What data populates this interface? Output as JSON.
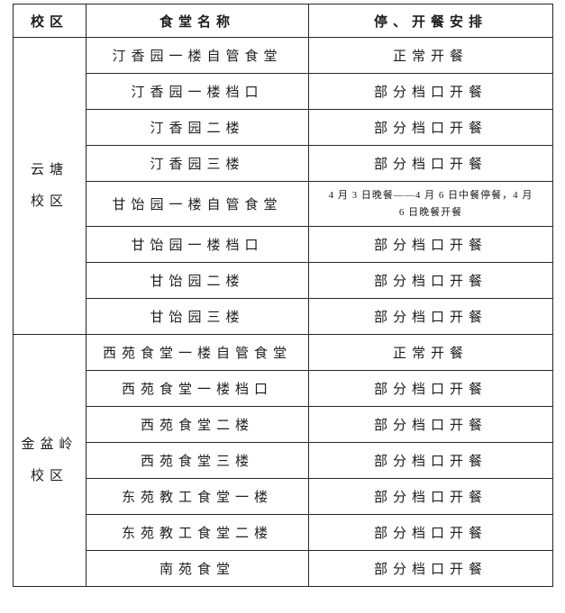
{
  "colors": {
    "background": "#ffffff",
    "border": "#262626",
    "text": "#1d1d1d"
  },
  "table": {
    "headers": {
      "campus": "校区",
      "canteen": "食堂名称",
      "schedule": "停、开餐安排"
    },
    "groups": [
      {
        "campus": "云塘校区",
        "campus_lines": [
          "云塘",
          "校区"
        ],
        "rows": [
          {
            "canteen": "汀香园一楼自管食堂",
            "schedule": "正常开餐"
          },
          {
            "canteen": "汀香园一楼档口",
            "schedule": "部分档口开餐"
          },
          {
            "canteen": "汀香园二楼",
            "schedule": "部分档口开餐"
          },
          {
            "canteen": "汀香园三楼",
            "schedule": "部分档口开餐"
          },
          {
            "canteen": "甘饴园一楼自管食堂",
            "schedule": "4 月 3 日晚餐——4 月 6 日中餐停餐，4 月 6 日晚餐开餐",
            "schedule_lines": [
              "4 月 3 日晚餐——4 月 6 日中餐停餐，4 月",
              "6 日晚餐开餐"
            ]
          },
          {
            "canteen": "甘饴园一楼档口",
            "schedule": "部分档口开餐"
          },
          {
            "canteen": "甘饴园二楼",
            "schedule": "部分档口开餐"
          },
          {
            "canteen": "甘饴园三楼",
            "schedule": "部分档口开餐"
          }
        ]
      },
      {
        "campus": "金盆岭校区",
        "campus_lines": [
          "金盆岭",
          "校区"
        ],
        "rows": [
          {
            "canteen": "西苑食堂一楼自管食堂",
            "schedule": "正常开餐"
          },
          {
            "canteen": "西苑食堂一楼档口",
            "schedule": "部分档口开餐"
          },
          {
            "canteen": "西苑食堂二楼",
            "schedule": "部分档口开餐"
          },
          {
            "canteen": "西苑食堂三楼",
            "schedule": "部分档口开餐"
          },
          {
            "canteen": "东苑教工食堂一楼",
            "schedule": "部分档口开餐"
          },
          {
            "canteen": "东苑教工食堂二楼",
            "schedule": "部分档口开餐"
          },
          {
            "canteen": "南苑食堂",
            "schedule": "部分档口开餐"
          }
        ]
      }
    ]
  }
}
